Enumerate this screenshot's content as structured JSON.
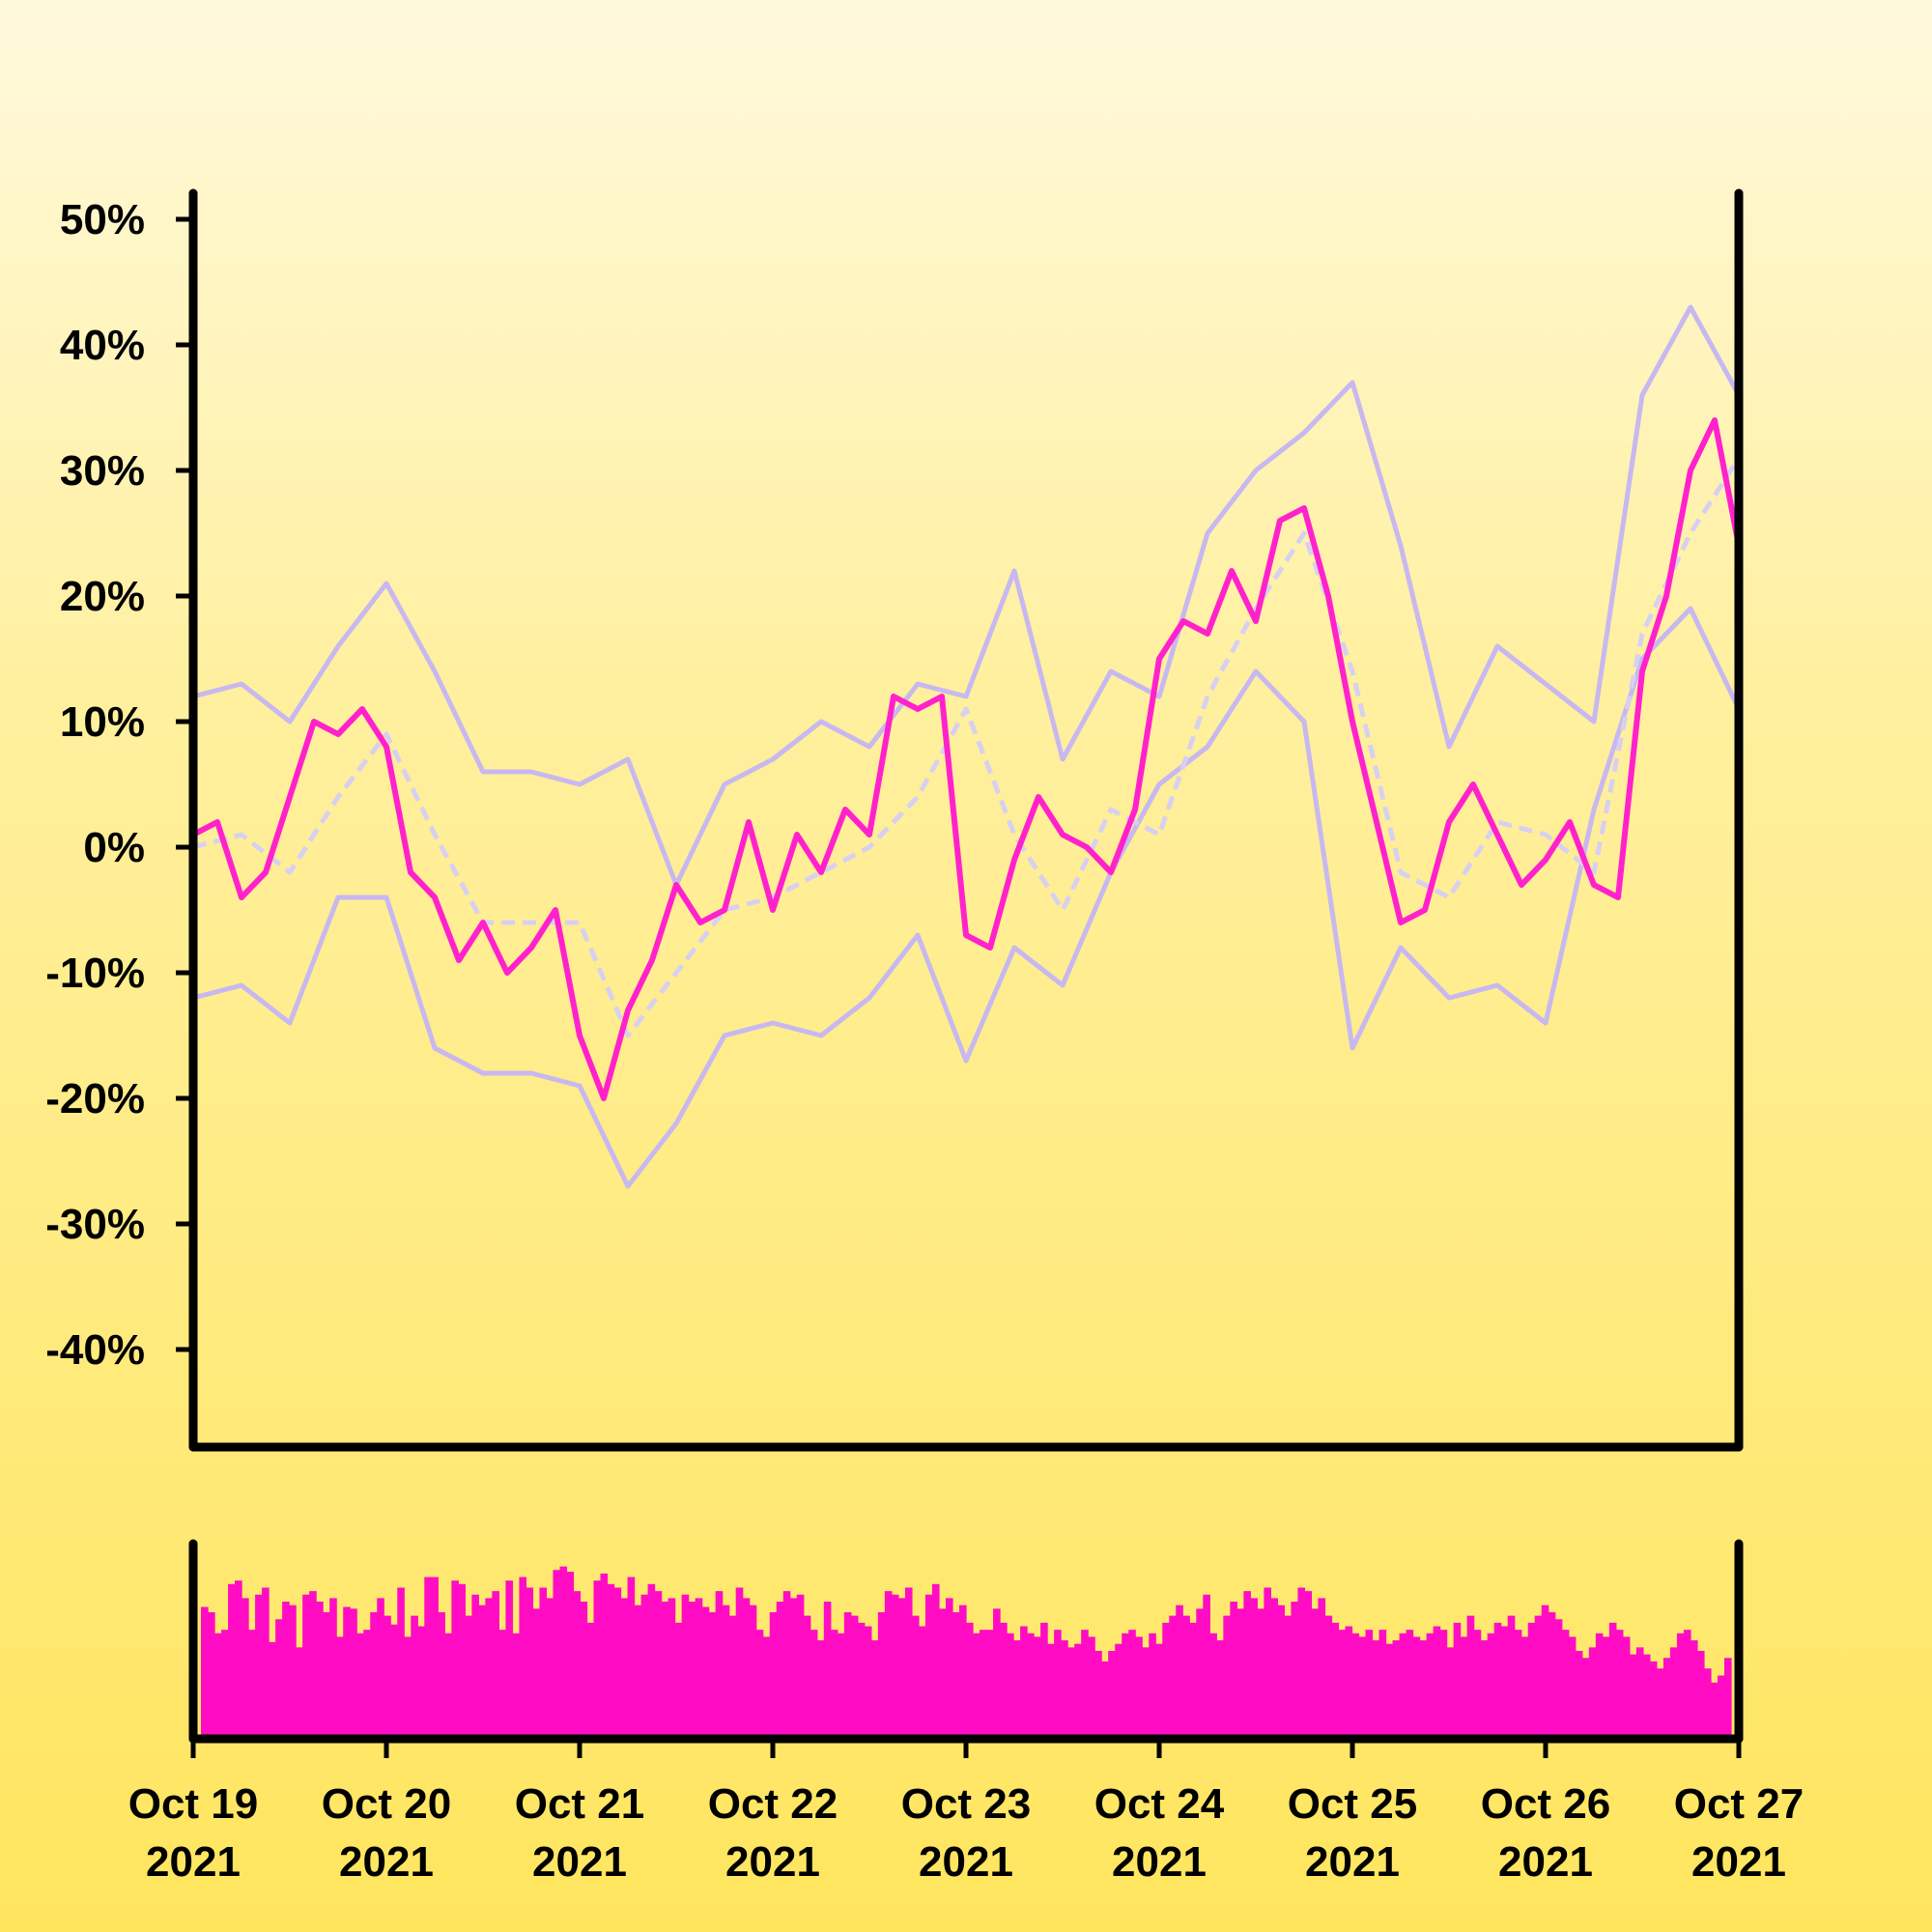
{
  "chart_data": {
    "type": "line",
    "title": "",
    "xlabel": "",
    "ylabel": "",
    "x_range": [
      "2021-10-19",
      "2021-10-27"
    ],
    "ylim": [
      -47,
      52
    ],
    "y_ticks": [
      {
        "value": 50,
        "label": "50%"
      },
      {
        "value": 40,
        "label": "40%"
      },
      {
        "value": 30,
        "label": "30%"
      },
      {
        "value": 20,
        "label": "20%"
      },
      {
        "value": 10,
        "label": "10%"
      },
      {
        "value": 0,
        "label": "0%"
      },
      {
        "value": -10,
        "label": "-10%"
      },
      {
        "value": -20,
        "label": "-20%"
      },
      {
        "value": -30,
        "label": "-30%"
      },
      {
        "value": -40,
        "label": "-40%"
      }
    ],
    "x_ticks": [
      {
        "date": "2021-10-19",
        "line1": "Oct 19",
        "line2": "2021"
      },
      {
        "date": "2021-10-20",
        "line1": "Oct 20",
        "line2": "2021"
      },
      {
        "date": "2021-10-21",
        "line1": "Oct 21",
        "line2": "2021"
      },
      {
        "date": "2021-10-22",
        "line1": "Oct 22",
        "line2": "2021"
      },
      {
        "date": "2021-10-23",
        "line1": "Oct 23",
        "line2": "2021"
      },
      {
        "date": "2021-10-24",
        "line1": "Oct 24",
        "line2": "2021"
      },
      {
        "date": "2021-10-25",
        "line1": "Oct 25",
        "line2": "2021"
      },
      {
        "date": "2021-10-26",
        "line1": "Oct 26",
        "line2": "2021"
      },
      {
        "date": "2021-10-27",
        "line1": "Oct 27",
        "line2": "2021"
      }
    ],
    "series": [
      {
        "role": "price",
        "color": "#ff22cc",
        "x": [
          "2021-10-19 00:00",
          "2021-10-19 03:00",
          "2021-10-19 06:00",
          "2021-10-19 09:00",
          "2021-10-19 12:00",
          "2021-10-19 15:00",
          "2021-10-19 18:00",
          "2021-10-19 21:00",
          "2021-10-20 00:00",
          "2021-10-20 03:00",
          "2021-10-20 06:00",
          "2021-10-20 09:00",
          "2021-10-20 12:00",
          "2021-10-20 15:00",
          "2021-10-20 18:00",
          "2021-10-20 21:00",
          "2021-10-21 00:00",
          "2021-10-21 03:00",
          "2021-10-21 06:00",
          "2021-10-21 09:00",
          "2021-10-21 12:00",
          "2021-10-21 15:00",
          "2021-10-21 18:00",
          "2021-10-21 21:00",
          "2021-10-22 00:00",
          "2021-10-22 03:00",
          "2021-10-22 06:00",
          "2021-10-22 09:00",
          "2021-10-22 12:00",
          "2021-10-22 15:00",
          "2021-10-22 18:00",
          "2021-10-22 21:00",
          "2021-10-23 00:00",
          "2021-10-23 03:00",
          "2021-10-23 06:00",
          "2021-10-23 09:00",
          "2021-10-23 12:00",
          "2021-10-23 15:00",
          "2021-10-23 18:00",
          "2021-10-23 21:00",
          "2021-10-24 00:00",
          "2021-10-24 03:00",
          "2021-10-24 06:00",
          "2021-10-24 09:00",
          "2021-10-24 12:00",
          "2021-10-24 15:00",
          "2021-10-24 18:00",
          "2021-10-24 21:00",
          "2021-10-25 00:00",
          "2021-10-25 03:00",
          "2021-10-25 06:00",
          "2021-10-25 09:00",
          "2021-10-25 12:00",
          "2021-10-25 15:00",
          "2021-10-25 18:00",
          "2021-10-25 21:00",
          "2021-10-26 00:00",
          "2021-10-26 03:00",
          "2021-10-26 06:00",
          "2021-10-26 09:00",
          "2021-10-26 12:00",
          "2021-10-26 15:00",
          "2021-10-26 18:00",
          "2021-10-26 21:00",
          "2021-10-27 00:00"
        ],
        "values": [
          1,
          2,
          -4,
          -2,
          4,
          10,
          9,
          11,
          8,
          -2,
          -4,
          -9,
          -6,
          -10,
          -8,
          -5,
          -15,
          -20,
          -13,
          -9,
          -3,
          -6,
          -5,
          2,
          -5,
          1,
          -2,
          3,
          1,
          12,
          11,
          12,
          -7,
          -8,
          -1,
          4,
          1,
          0,
          -2,
          3,
          15,
          18,
          17,
          22,
          18,
          26,
          27,
          20,
          10,
          2,
          -6,
          -5,
          2,
          5,
          1,
          -3,
          -1,
          2,
          -3,
          -4,
          14,
          20,
          30,
          34,
          24
        ]
      },
      {
        "role": "moving-average",
        "color": "#d8d0f0",
        "dashed": true,
        "x": [
          "2021-10-19 00:00",
          "2021-10-19 06:00",
          "2021-10-19 12:00",
          "2021-10-19 18:00",
          "2021-10-20 00:00",
          "2021-10-20 06:00",
          "2021-10-20 12:00",
          "2021-10-20 18:00",
          "2021-10-21 00:00",
          "2021-10-21 06:00",
          "2021-10-21 12:00",
          "2021-10-21 18:00",
          "2021-10-22 00:00",
          "2021-10-22 06:00",
          "2021-10-22 12:00",
          "2021-10-22 18:00",
          "2021-10-23 00:00",
          "2021-10-23 06:00",
          "2021-10-23 12:00",
          "2021-10-23 18:00",
          "2021-10-24 00:00",
          "2021-10-24 06:00",
          "2021-10-24 12:00",
          "2021-10-24 18:00",
          "2021-10-25 00:00",
          "2021-10-25 06:00",
          "2021-10-25 12:00",
          "2021-10-25 18:00",
          "2021-10-26 00:00",
          "2021-10-26 06:00",
          "2021-10-26 12:00",
          "2021-10-26 18:00",
          "2021-10-27 00:00"
        ],
        "values": [
          0,
          1,
          -2,
          4,
          9,
          1,
          -6,
          -6,
          -6,
          -15,
          -10,
          -5,
          -4,
          -2,
          0,
          4,
          11,
          1,
          -5,
          3,
          1,
          12,
          19,
          25,
          14,
          -2,
          -4,
          2,
          1,
          -2,
          17,
          25,
          31
        ]
      },
      {
        "role": "upper-band",
        "color": "#c8b8f0",
        "x": [
          "2021-10-19 00:00",
          "2021-10-19 06:00",
          "2021-10-19 12:00",
          "2021-10-19 18:00",
          "2021-10-20 00:00",
          "2021-10-20 06:00",
          "2021-10-20 12:00",
          "2021-10-20 18:00",
          "2021-10-21 00:00",
          "2021-10-21 06:00",
          "2021-10-21 12:00",
          "2021-10-21 18:00",
          "2021-10-22 00:00",
          "2021-10-22 06:00",
          "2021-10-22 12:00",
          "2021-10-22 18:00",
          "2021-10-23 00:00",
          "2021-10-23 06:00",
          "2021-10-23 12:00",
          "2021-10-23 18:00",
          "2021-10-24 00:00",
          "2021-10-24 06:00",
          "2021-10-24 12:00",
          "2021-10-24 18:00",
          "2021-10-25 00:00",
          "2021-10-25 06:00",
          "2021-10-25 12:00",
          "2021-10-25 18:00",
          "2021-10-26 00:00",
          "2021-10-26 06:00",
          "2021-10-26 12:00",
          "2021-10-26 18:00",
          "2021-10-27 00:00"
        ],
        "values": [
          12,
          13,
          10,
          16,
          21,
          14,
          6,
          6,
          5,
          7,
          -3,
          5,
          7,
          10,
          8,
          13,
          12,
          22,
          7,
          14,
          12,
          25,
          30,
          33,
          37,
          24,
          8,
          16,
          13,
          10,
          36,
          43,
          36
        ]
      },
      {
        "role": "lower-band",
        "color": "#c8b8f0",
        "x": [
          "2021-10-19 00:00",
          "2021-10-19 06:00",
          "2021-10-19 12:00",
          "2021-10-19 18:00",
          "2021-10-20 00:00",
          "2021-10-20 06:00",
          "2021-10-20 12:00",
          "2021-10-20 18:00",
          "2021-10-21 00:00",
          "2021-10-21 06:00",
          "2021-10-21 12:00",
          "2021-10-21 18:00",
          "2021-10-22 00:00",
          "2021-10-22 06:00",
          "2021-10-22 12:00",
          "2021-10-22 18:00",
          "2021-10-23 00:00",
          "2021-10-23 06:00",
          "2021-10-23 12:00",
          "2021-10-23 18:00",
          "2021-10-24 00:00",
          "2021-10-24 06:00",
          "2021-10-24 12:00",
          "2021-10-24 18:00",
          "2021-10-25 00:00",
          "2021-10-25 06:00",
          "2021-10-25 12:00",
          "2021-10-25 18:00",
          "2021-10-26 00:00",
          "2021-10-26 06:00",
          "2021-10-26 12:00",
          "2021-10-26 18:00",
          "2021-10-27 00:00"
        ],
        "values": [
          -12,
          -11,
          -14,
          -4,
          -4,
          -16,
          -18,
          -18,
          -19,
          -27,
          -22,
          -15,
          -14,
          -15,
          -12,
          -7,
          -17,
          -8,
          -11,
          -2,
          5,
          8,
          14,
          10,
          -16,
          -8,
          -12,
          -11,
          -14,
          3,
          15,
          19,
          11
        ]
      }
    ],
    "volume": {
      "color": "#ff0cc4",
      "values": [
        75,
        72,
        60,
        62,
        88,
        90,
        80,
        62,
        82,
        86,
        55,
        68,
        78,
        76,
        52,
        82,
        84,
        78,
        72,
        80,
        58,
        75,
        74,
        60,
        62,
        72,
        80,
        70,
        65,
        86,
        58,
        70,
        64,
        92,
        92,
        72,
        60,
        90,
        88,
        70,
        82,
        76,
        80,
        84,
        62,
        90,
        60,
        92,
        86,
        74,
        86,
        80,
        96,
        98,
        95,
        84,
        78,
        66,
        90,
        94,
        88,
        86,
        80,
        92,
        76,
        82,
        88,
        84,
        78,
        80,
        66,
        82,
        78,
        80,
        75,
        72,
        84,
        76,
        70,
        86,
        80,
        76,
        62,
        58,
        72,
        78,
        84,
        80,
        82,
        70,
        62,
        56,
        78,
        62,
        60,
        72,
        70,
        66,
        64,
        56,
        72,
        84,
        82,
        80,
        86,
        70,
        64,
        82,
        88,
        74,
        80,
        72,
        76,
        66,
        60,
        62,
        62,
        74,
        66,
        60,
        56,
        64,
        60,
        58,
        66,
        54,
        62,
        56,
        52,
        54,
        62,
        58,
        50,
        44,
        50,
        54,
        60,
        62,
        58,
        52,
        60,
        54,
        66,
        70,
        76,
        70,
        66,
        74,
        82,
        60,
        56,
        70,
        78,
        74,
        84,
        80,
        74,
        86,
        80,
        76,
        70,
        78,
        86,
        84,
        74,
        80,
        70,
        66,
        62,
        64,
        60,
        58,
        62,
        56,
        62,
        54,
        56,
        60,
        62,
        58,
        56,
        60,
        64,
        62,
        52,
        66,
        58,
        70,
        62,
        56,
        60,
        66,
        64,
        70,
        62,
        58,
        66,
        70,
        76,
        72,
        68,
        62,
        58,
        50,
        46,
        52,
        60,
        58,
        66,
        62,
        58,
        48,
        52,
        48,
        44,
        40,
        46,
        52,
        60,
        62,
        56,
        50,
        40,
        32,
        36,
        46
      ]
    }
  }
}
